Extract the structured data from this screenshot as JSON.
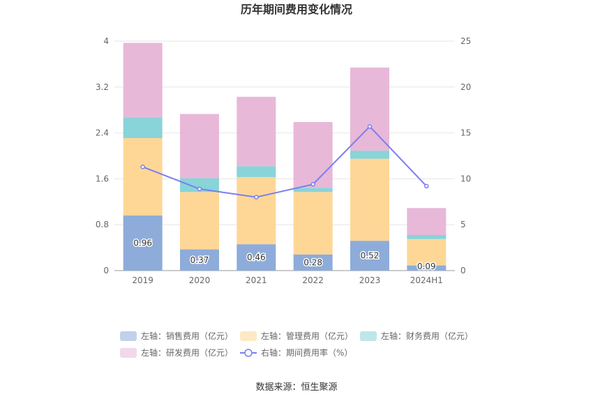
{
  "chart_data": {
    "type": "bar",
    "title": "历年期间费用变化情况",
    "categories": [
      "2019",
      "2020",
      "2021",
      "2022",
      "2023",
      "2024H1"
    ],
    "left_axis": {
      "ylim": [
        0,
        4
      ],
      "ticks": [
        "0",
        "0.8",
        "1.6",
        "2.4",
        "3.2",
        "4"
      ]
    },
    "right_axis": {
      "ylim": [
        0,
        25
      ],
      "ticks": [
        "0",
        "5",
        "10",
        "15",
        "20",
        "25"
      ]
    },
    "stacked": true,
    "series": [
      {
        "name": "左轴：销售费用（亿元）",
        "axis": "left",
        "color": "#8eacda",
        "values": [
          0.96,
          0.37,
          0.46,
          0.28,
          0.52,
          0.09
        ],
        "labels": [
          "0.96",
          "0.37",
          "0.46",
          "0.28",
          "0.52",
          "0.09"
        ]
      },
      {
        "name": "左轴：管理费用（亿元）",
        "axis": "left",
        "color": "#fed797",
        "values": [
          1.35,
          1.0,
          1.17,
          1.09,
          1.43,
          0.46
        ]
      },
      {
        "name": "左轴：财务费用（亿元）",
        "axis": "left",
        "color": "#88d4d8",
        "values": [
          0.36,
          0.24,
          0.19,
          0.07,
          0.14,
          0.07
        ]
      },
      {
        "name": "左轴：研发费用（亿元）",
        "axis": "left",
        "color": "#e8b8d8",
        "values": [
          1.3,
          1.12,
          1.21,
          1.15,
          1.45,
          0.47
        ]
      },
      {
        "name": "右轴：期间费用率（%）",
        "axis": "right",
        "type": "line",
        "color": "#7b7ef0",
        "values": [
          11.3,
          8.9,
          8.0,
          9.4,
          15.7,
          9.2
        ]
      }
    ],
    "legend_position": "bottom",
    "grid": true
  },
  "source": "数据来源：恒生聚源"
}
